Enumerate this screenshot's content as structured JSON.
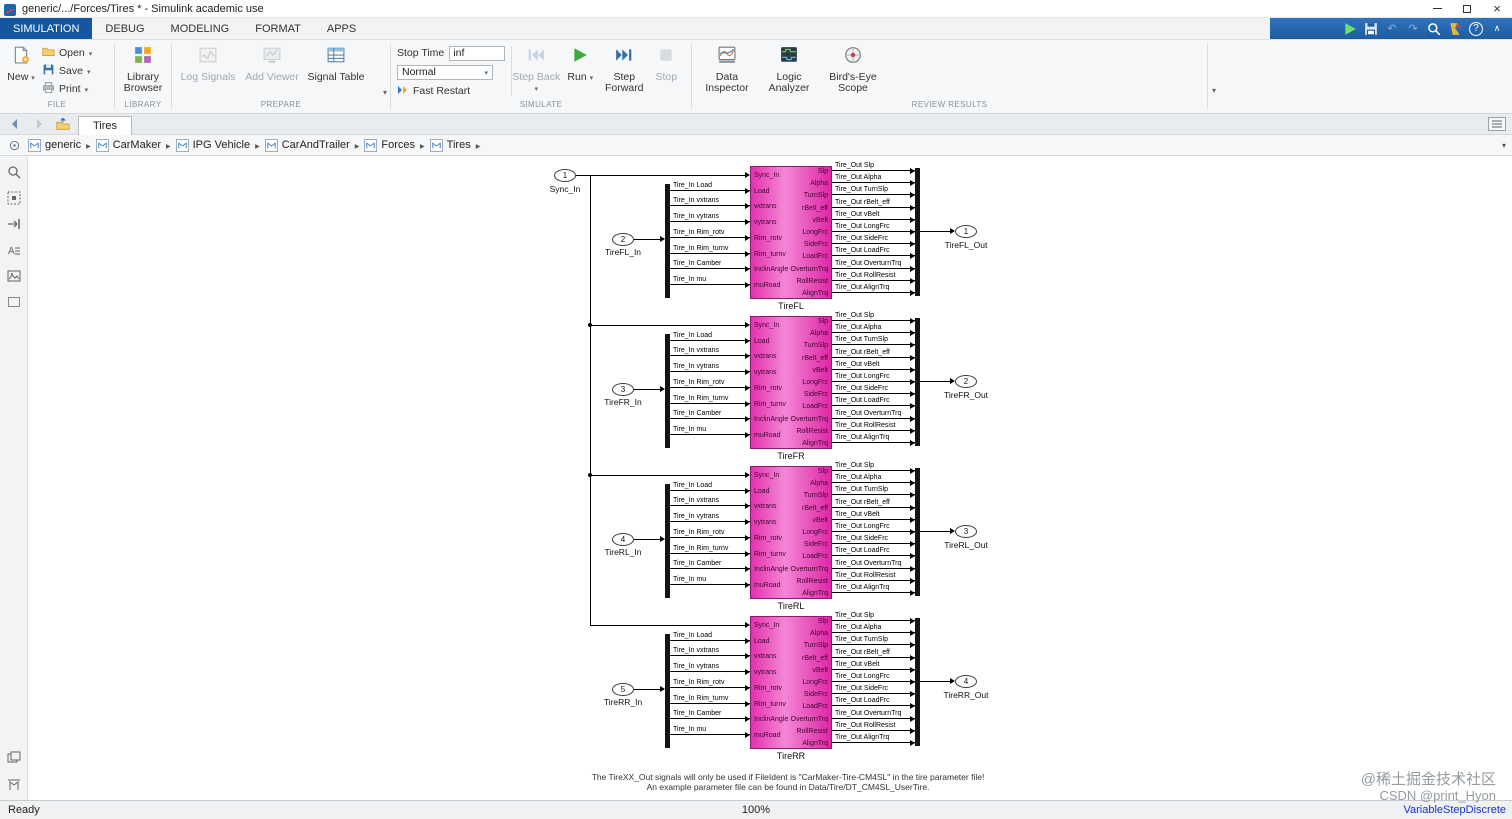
{
  "window": {
    "title": "generic/.../Forces/Tires * - Simulink academic use"
  },
  "ribbon": {
    "tabs": [
      {
        "label": "SIMULATION"
      },
      {
        "label": "DEBUG"
      },
      {
        "label": "MODELING"
      },
      {
        "label": "FORMAT"
      },
      {
        "label": "APPS"
      }
    ],
    "groups": {
      "file": {
        "label": "FILE",
        "new": "New",
        "open": "Open",
        "save": "Save",
        "print": "Print"
      },
      "library": {
        "label": "LIBRARY",
        "library_browser": "Library Browser"
      },
      "prepare": {
        "label": "PREPARE",
        "log_signals": "Log Signals",
        "add_viewer": "Add Viewer",
        "signal_table": "Signal Table"
      },
      "simulate": {
        "label": "SIMULATE",
        "stop_time": "Stop Time",
        "stop_time_value": "inf",
        "mode": "Normal",
        "fast_restart": "Fast Restart",
        "step_back": "Step Back",
        "run": "Run",
        "step_forward": "Step Forward",
        "stop": "Stop"
      },
      "review": {
        "label": "REVIEW RESULTS",
        "data_inspector": "Data Inspector",
        "logic_analyzer": "Logic Analyzer",
        "birds_eye_scope": "Bird's-Eye Scope"
      }
    }
  },
  "docbar": {
    "tab": "Tires"
  },
  "breadcrumb": {
    "items": [
      {
        "label": "generic"
      },
      {
        "label": "CarMaker"
      },
      {
        "label": "IPG Vehicle"
      },
      {
        "label": "CarAndTrailer"
      },
      {
        "label": "Forces"
      },
      {
        "label": "Tires"
      }
    ]
  },
  "canvas": {
    "block_color": "#e431ae",
    "sync_port": {
      "num": "1",
      "label": "Sync_In"
    },
    "tire_blocks": [
      {
        "name": "TireFL",
        "in_num": "2",
        "in_label": "TireFL_In",
        "out_num": "1",
        "out_label": "TireFL_Out"
      },
      {
        "name": "TireFR",
        "in_num": "3",
        "in_label": "TireFR_In",
        "out_num": "2",
        "out_label": "TireFR_Out"
      },
      {
        "name": "TireRL",
        "in_num": "4",
        "in_label": "TireRL_In",
        "out_num": "3",
        "out_label": "TireRL_Out"
      },
      {
        "name": "TireRR",
        "in_num": "5",
        "in_label": "TireRR_In",
        "out_num": "4",
        "out_label": "TireRR_Out"
      }
    ],
    "bus_in_signals": [
      "Tire_In Load",
      "Tire_In vxtrans",
      "Tire_In vytrans",
      "Tire_In Rim_rotv",
      "Tire_In Rim_turnv",
      "Tire_In Camber",
      "Tire_In mu"
    ],
    "block_inputs": [
      "Sync_In",
      "Load",
      "vxtrans",
      "vytrans",
      "Rim_rotv",
      "Rim_turnv",
      "InclinAngle",
      "muRoad"
    ],
    "block_outputs": [
      "Slp",
      "Alpha",
      "TurnSlp",
      "rBelt_eff",
      "vBelt",
      "LongFrc",
      "SideFrc",
      "LoadFrc",
      "OverturnTrq",
      "RollResist",
      "AlignTrq"
    ],
    "bus_out_signals": [
      "Tire_Out Slp",
      "Tire_Out Alpha",
      "Tire_Out TurnSlp",
      "Tire_Out rBelt_eff",
      "Tire_Out vBelt",
      "Tire_Out LongFrc",
      "Tire_Out SideFrc",
      "Tire_Out LoadFrc",
      "Tire_Out OverturnTrq",
      "Tire_Out RollResist",
      "Tire_Out AlignTrq"
    ],
    "annotation_line1": "The TireXX_Out signals will only be used if FileIdent is \"CarMaker-Tire-CM4SL\" in the tire parameter file!",
    "annotation_line2": "An example parameter file can be found in Data/Tire/DT_CM4SL_UserTire."
  },
  "statusbar": {
    "status": "Ready",
    "zoom": "100%",
    "solver": "VariableStepDiscrete"
  },
  "watermark": {
    "line1": "@稀土掘金技术社区",
    "line2": "CSDN @print_Hyon"
  }
}
